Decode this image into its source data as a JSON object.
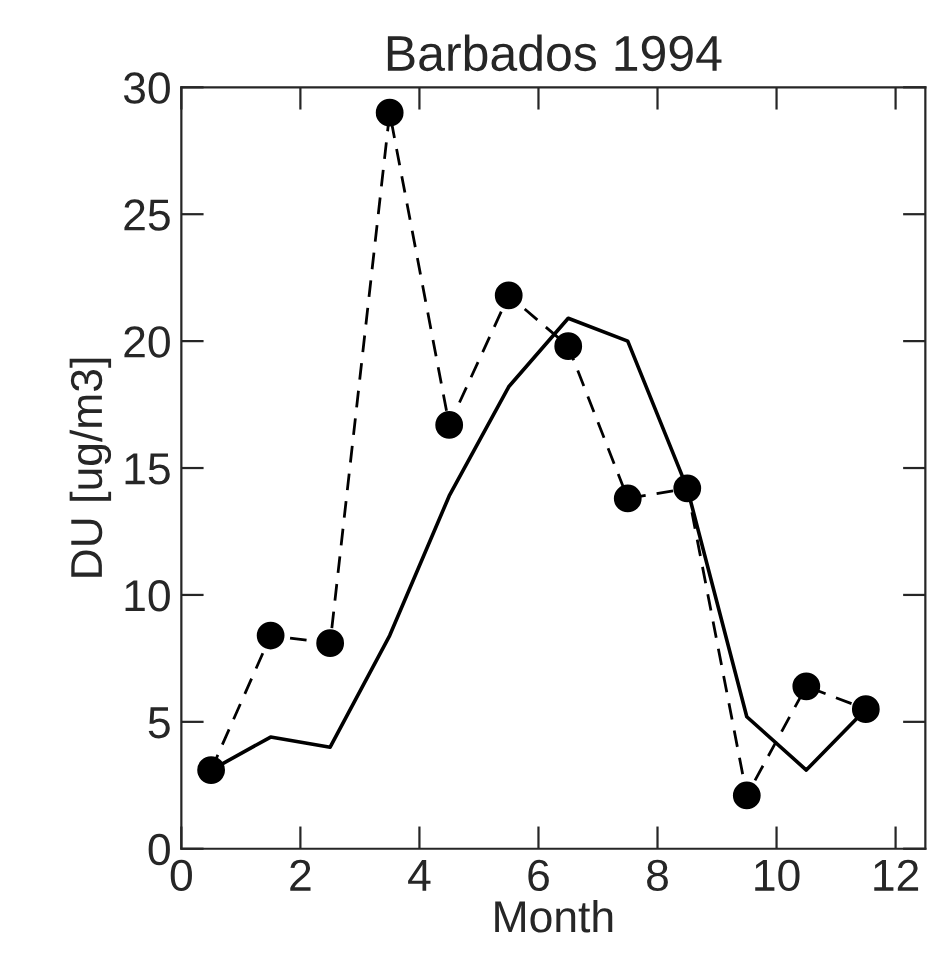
{
  "chart_data": {
    "type": "line",
    "title": "Barbados 1994",
    "xlabel": "Month",
    "ylabel": "DU [ug/m3]",
    "x": [
      0.5,
      1.5,
      2.5,
      3.5,
      4.5,
      5.5,
      6.5,
      7.5,
      8.5,
      9.5,
      10.5,
      11.5
    ],
    "series": [
      {
        "color": "#000000",
        "line_style": "dashed",
        "marker": "circle",
        "values": [
          3.1,
          8.4,
          8.1,
          29.0,
          16.7,
          21.8,
          19.8,
          13.8,
          14.2,
          2.1,
          6.4,
          5.5
        ]
      },
      {
        "color": "#000000",
        "line_style": "solid",
        "marker": "none",
        "values": [
          3.1,
          4.4,
          4.0,
          8.4,
          13.9,
          18.2,
          20.9,
          20.0,
          14.2,
          5.2,
          3.1,
          5.5
        ]
      }
    ],
    "xlim": [
      0,
      12.5
    ],
    "xticks": [
      0,
      2,
      4,
      6,
      8,
      10,
      12
    ],
    "ylim": [
      0,
      30
    ],
    "yticks": [
      0,
      5,
      10,
      15,
      20,
      25,
      30
    ],
    "grid": false,
    "legend": false
  }
}
